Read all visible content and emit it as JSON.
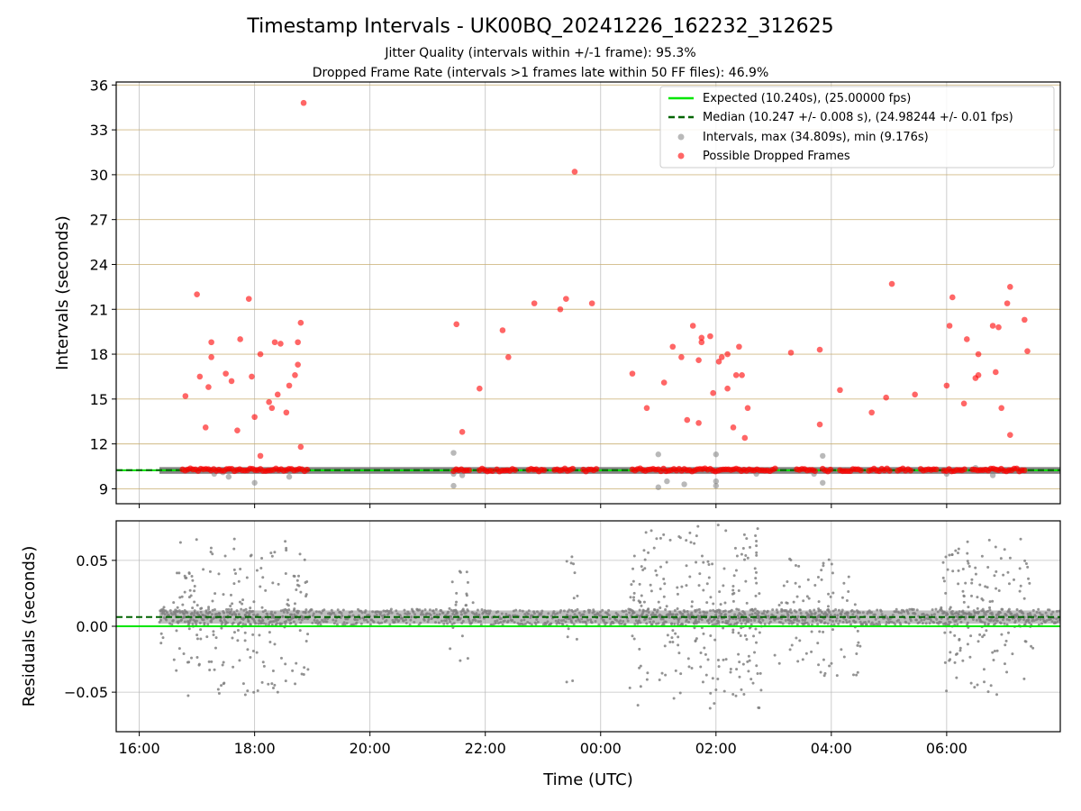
{
  "chart_data": [
    {
      "type": "scatter",
      "panel": "intervals",
      "title": "Timestamp Intervals - UK00BQ_20241226_162232_312625",
      "subtitles": [
        "Jitter Quality (intervals within +/-1 frame): 95.3%",
        "Dropped Frame Rate (intervals >1 frames late within 50 FF files): 46.9%"
      ],
      "xlabel": "",
      "ylabel": "Intervals (seconds)",
      "x_unit": "hours since 16:00 UTC (Dec 26)",
      "xlim": [
        -0.4,
        15.97
      ],
      "ylim": [
        8.0,
        36.2
      ],
      "yticks": [
        9,
        12,
        15,
        18,
        21,
        24,
        27,
        30,
        33,
        36
      ],
      "grid": true,
      "legend_position": "upper right",
      "expected": {
        "name": "Expected (10.240s), (25.00000 fps)",
        "value": 10.24,
        "color": "#00e600"
      },
      "median": {
        "name": "Median (10.247 +/- 0.008 s), (24.98244 +/- 0.01 fps)",
        "value": 10.247,
        "color": "#006400"
      },
      "intervals_series": {
        "name": "Intervals, max (34.809s), min (9.176s)",
        "color": "#808080",
        "band": [
          0.35,
          15.97
        ],
        "outliers": [
          [
            1.3,
            10.0
          ],
          [
            1.45,
            10.1
          ],
          [
            1.55,
            9.8
          ],
          [
            2.0,
            9.4
          ],
          [
            2.6,
            9.8
          ],
          [
            5.45,
            11.4
          ],
          [
            5.45,
            10.0
          ],
          [
            5.45,
            9.2
          ],
          [
            5.6,
            9.9
          ],
          [
            9.0,
            11.3
          ],
          [
            9.0,
            9.1
          ],
          [
            9.15,
            9.5
          ],
          [
            9.45,
            9.3
          ],
          [
            10.0,
            9.2
          ],
          [
            10.0,
            11.3
          ],
          [
            10.0,
            9.5
          ],
          [
            10.7,
            10.0
          ],
          [
            11.7,
            10.0
          ],
          [
            11.85,
            11.2
          ],
          [
            11.85,
            9.4
          ],
          [
            14.0,
            10.0
          ],
          [
            14.5,
            10.4
          ],
          [
            14.8,
            9.9
          ]
        ]
      },
      "dropped_series": {
        "name": "Possible Dropped Frames",
        "color": "#ff0000",
        "band_segments": [
          [
            0.75,
            2.95
          ],
          [
            5.45,
            5.75
          ],
          [
            5.9,
            6.15
          ],
          [
            6.2,
            6.55
          ],
          [
            6.75,
            7.05
          ],
          [
            7.2,
            7.55
          ],
          [
            7.7,
            7.95
          ],
          [
            8.55,
            11.05
          ],
          [
            11.4,
            11.75
          ],
          [
            11.85,
            12.0
          ],
          [
            12.15,
            12.55
          ],
          [
            12.65,
            13.05
          ],
          [
            13.15,
            13.4
          ],
          [
            13.55,
            13.85
          ],
          [
            13.95,
            14.35
          ],
          [
            14.45,
            15.35
          ]
        ],
        "points": [
          [
            0.8,
            15.2
          ],
          [
            1.0,
            22.0
          ],
          [
            1.05,
            16.5
          ],
          [
            1.15,
            13.1
          ],
          [
            1.2,
            15.8
          ],
          [
            1.25,
            17.8
          ],
          [
            1.25,
            18.8
          ],
          [
            1.5,
            16.7
          ],
          [
            1.6,
            16.2
          ],
          [
            1.7,
            12.9
          ],
          [
            1.75,
            19.0
          ],
          [
            1.9,
            21.7
          ],
          [
            1.95,
            16.5
          ],
          [
            2.0,
            13.8
          ],
          [
            2.1,
            11.2
          ],
          [
            2.1,
            18.0
          ],
          [
            2.25,
            14.8
          ],
          [
            2.3,
            14.4
          ],
          [
            2.35,
            18.8
          ],
          [
            2.4,
            15.3
          ],
          [
            2.45,
            18.7
          ],
          [
            2.55,
            14.1
          ],
          [
            2.6,
            15.9
          ],
          [
            2.7,
            16.6
          ],
          [
            2.75,
            17.3
          ],
          [
            2.75,
            18.8
          ],
          [
            2.8,
            20.1
          ],
          [
            2.8,
            11.8
          ],
          [
            2.85,
            34.8
          ],
          [
            5.5,
            20.0
          ],
          [
            5.6,
            12.8
          ],
          [
            5.9,
            15.7
          ],
          [
            6.3,
            19.6
          ],
          [
            6.4,
            17.8
          ],
          [
            6.85,
            21.4
          ],
          [
            7.3,
            21.0
          ],
          [
            7.4,
            21.7
          ],
          [
            7.55,
            30.2
          ],
          [
            7.85,
            21.4
          ],
          [
            8.55,
            16.7
          ],
          [
            8.8,
            14.4
          ],
          [
            9.1,
            16.1
          ],
          [
            9.25,
            18.5
          ],
          [
            9.4,
            17.8
          ],
          [
            9.5,
            13.6
          ],
          [
            9.6,
            19.9
          ],
          [
            9.7,
            17.6
          ],
          [
            9.75,
            19.1
          ],
          [
            9.7,
            13.4
          ],
          [
            9.75,
            18.8
          ],
          [
            9.9,
            19.2
          ],
          [
            9.95,
            15.4
          ],
          [
            10.05,
            17.5
          ],
          [
            10.1,
            17.8
          ],
          [
            10.2,
            15.7
          ],
          [
            10.2,
            18.0
          ],
          [
            10.3,
            13.1
          ],
          [
            10.35,
            16.6
          ],
          [
            10.4,
            18.5
          ],
          [
            10.45,
            16.6
          ],
          [
            10.5,
            12.4
          ],
          [
            10.55,
            14.4
          ],
          [
            11.3,
            18.1
          ],
          [
            11.8,
            18.3
          ],
          [
            11.8,
            13.3
          ],
          [
            12.15,
            15.6
          ],
          [
            12.7,
            14.1
          ],
          [
            12.95,
            15.1
          ],
          [
            13.05,
            22.7
          ],
          [
            13.45,
            15.3
          ],
          [
            14.0,
            15.9
          ],
          [
            14.1,
            21.8
          ],
          [
            14.05,
            19.9
          ],
          [
            14.3,
            14.7
          ],
          [
            14.35,
            19.0
          ],
          [
            14.5,
            16.4
          ],
          [
            14.55,
            18.0
          ],
          [
            14.55,
            16.6
          ],
          [
            14.8,
            19.9
          ],
          [
            14.85,
            16.8
          ],
          [
            14.9,
            19.8
          ],
          [
            14.95,
            14.4
          ],
          [
            15.05,
            21.4
          ],
          [
            15.1,
            22.5
          ],
          [
            15.1,
            12.6
          ],
          [
            15.35,
            20.3
          ],
          [
            15.4,
            18.2
          ]
        ]
      }
    },
    {
      "type": "scatter",
      "panel": "residuals",
      "xlabel": "Time (UTC)",
      "ylabel": "Residuals (seconds)",
      "xlim": [
        -0.4,
        15.97
      ],
      "ylim": [
        -0.08,
        0.08
      ],
      "yticks": [
        0.05,
        0.0,
        -0.05
      ],
      "ytick_labels": [
        "0.05",
        "0.00",
        "−0.05"
      ],
      "xticks": [
        0,
        2,
        4,
        6,
        8,
        10,
        12,
        14
      ],
      "xtick_labels": [
        "16:00",
        "18:00",
        "20:00",
        "22:00",
        "00:00",
        "02:00",
        "04:00",
        "06:00"
      ],
      "grid": true,
      "expected_line": {
        "value": 0.0,
        "color": "#00e600"
      },
      "median_line": {
        "value": 0.007,
        "color": "#006400"
      },
      "points_color": "#808080",
      "band": {
        "start": 0.35,
        "end": 15.97,
        "center": 0.007
      },
      "scatter_windows": [
        {
          "range": [
            0.35,
            0.6
          ],
          "spread": 0.02
        },
        {
          "range": [
            0.6,
            2.95
          ],
          "spread": 0.06
        },
        {
          "range": [
            5.3,
            5.8
          ],
          "spread": 0.035
        },
        {
          "range": [
            7.4,
            7.6
          ],
          "spread": 0.05
        },
        {
          "range": [
            8.5,
            10.8
          ],
          "spread": 0.07
        },
        {
          "range": [
            11.0,
            12.5
          ],
          "spread": 0.045
        },
        {
          "range": [
            13.9,
            15.5
          ],
          "spread": 0.06
        }
      ]
    }
  ]
}
